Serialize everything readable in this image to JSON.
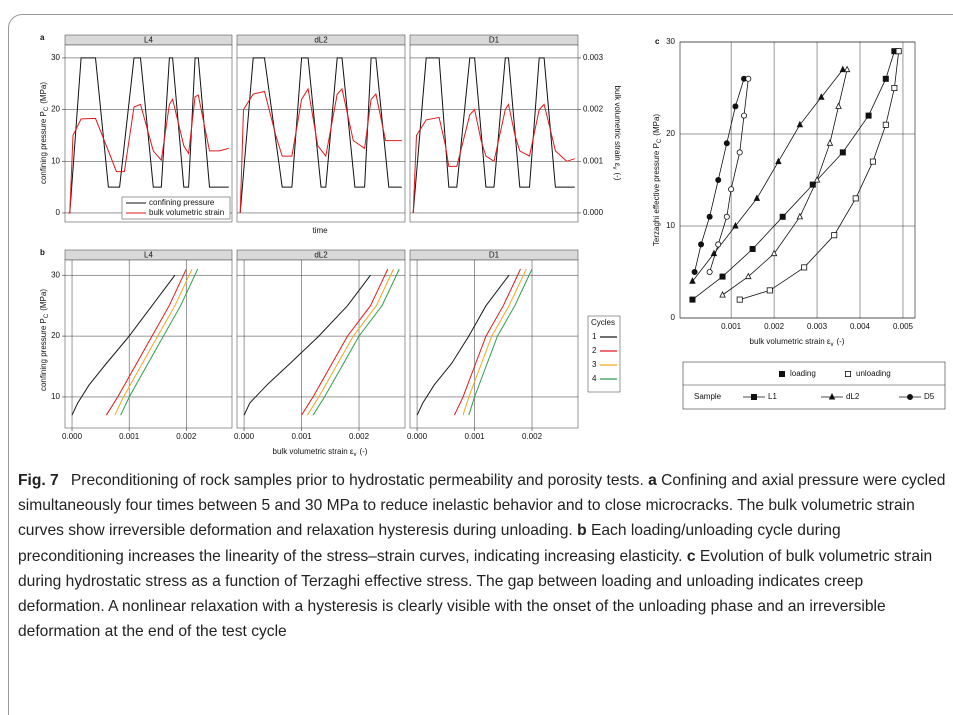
{
  "figure": {
    "panel_a": {
      "label": "a",
      "type": "line",
      "grid": true,
      "xlabel": "time",
      "ylabel": {
        "text": "confining pressure P",
        "sub": "C",
        "unit": "(MPa)"
      },
      "y2label": {
        "text": "bulk volumetric strain ε",
        "sub": "v",
        "unit": "(-)"
      },
      "xlim": [
        -2,
        102
      ],
      "ylim": [
        -1.75,
        32.5
      ],
      "yticks": [
        0,
        10,
        20,
        30
      ],
      "y2lim": [
        -0.000175,
        0.00325
      ],
      "y2ticks": [
        {
          "value": 0,
          "label": "0.000"
        },
        {
          "value": 0.001,
          "label": "0.001"
        },
        {
          "value": 0.002,
          "label": "0.002"
        },
        {
          "value": 0.003,
          "label": "0.003"
        }
      ],
      "legend": [
        {
          "name": "confining pressure",
          "color": "#111111"
        },
        {
          "name": "bulk volumetric strain",
          "color": "#e3191c",
          "axis": "y2"
        }
      ],
      "facets": [
        {
          "title": "L4",
          "series": [
            {
              "x": [
                0,
                1,
                8,
                17,
                25,
                32,
                41,
                45,
                53,
                58,
                63,
                65,
                72,
                75,
                79,
                81,
                88,
                100
              ],
              "values": [
                0,
                0,
                30,
                30,
                5,
                5,
                30,
                30,
                5,
                5,
                30,
                30,
                5,
                5,
                30,
                30,
                5,
                5
              ]
            },
            {
              "x": [
                0,
                1,
                3,
                8,
                17,
                25,
                30,
                35,
                41,
                45,
                53,
                58,
                63,
                65,
                72,
                75,
                79,
                81,
                88,
                94,
                100
              ],
              "values": [
                0,
                0,
                0.0015,
                0.00182,
                0.00183,
                0.0012,
                0.0008,
                0.0008,
                0.00205,
                0.0021,
                0.0012,
                0.00102,
                0.0021,
                0.0022,
                0.0013,
                0.00115,
                0.00225,
                0.00228,
                0.0012,
                0.0012,
                0.00125
              ]
            }
          ]
        },
        {
          "title": "dL2",
          "series": [
            {
              "x": [
                0,
                8,
                15,
                26,
                32,
                38,
                42,
                50,
                53,
                60,
                63,
                71,
                77,
                81,
                84,
                92,
                100
              ],
              "values": [
                0,
                30,
                30,
                5,
                5,
                30,
                30,
                5,
                5,
                30,
                30,
                5,
                5,
                30,
                30,
                5,
                5
              ]
            },
            {
              "x": [
                0,
                2,
                8,
                15,
                22,
                26,
                32,
                38,
                42,
                48,
                53,
                60,
                63,
                70,
                77,
                81,
                84,
                90,
                95,
                100
              ],
              "values": [
                0,
                0.002,
                0.0023,
                0.00235,
                0.0015,
                0.0011,
                0.0011,
                0.0022,
                0.0024,
                0.0013,
                0.0011,
                0.0023,
                0.0024,
                0.0014,
                0.00125,
                0.0022,
                0.0023,
                0.0014,
                0.0014,
                0.0014
              ]
            }
          ]
        },
        {
          "title": "D1",
          "series": [
            {
              "x": [
                0,
                8,
                16,
                22,
                27,
                35,
                38,
                45,
                50,
                57,
                59,
                66,
                72,
                78,
                81,
                88,
                100
              ],
              "values": [
                0,
                30,
                30,
                5,
                5,
                30,
                30,
                5,
                5,
                30,
                30,
                5,
                5,
                30,
                30,
                5,
                5
              ]
            },
            {
              "x": [
                0,
                2,
                8,
                16,
                20,
                22,
                27,
                35,
                38,
                42,
                45,
                50,
                57,
                59,
                63,
                66,
                72,
                78,
                81,
                85,
                88,
                95,
                100
              ],
              "values": [
                0,
                0.0015,
                0.0018,
                0.00185,
                0.0013,
                0.0009,
                0.0009,
                0.0019,
                0.002,
                0.0014,
                0.0011,
                0.001,
                0.002,
                0.0021,
                0.0015,
                0.0012,
                0.0011,
                0.002,
                0.0021,
                0.0016,
                0.0012,
                0.001,
                0.00105
              ]
            }
          ]
        }
      ]
    },
    "panel_b": {
      "label": "b",
      "type": "line",
      "grid": true,
      "xlabel": {
        "text": "bulk volumetric strain ε",
        "sub": "v",
        "unit": "(-)"
      },
      "ylabel": {
        "text": "confining pressure P",
        "sub": "C",
        "unit": "(MPa)"
      },
      "xlim": [
        -0.000123,
        0.0028
      ],
      "xticks": [
        {
          "value": 0,
          "label": "0.000"
        },
        {
          "value": 0.001,
          "label": "0.001"
        },
        {
          "value": 0.002,
          "label": "0.002"
        }
      ],
      "ylim": [
        4.9,
        32.5
      ],
      "yticks": [
        10,
        20,
        30
      ],
      "legend": {
        "title": "Cycles",
        "items": [
          {
            "name": "1",
            "color": "#1a1a1a"
          },
          {
            "name": "2",
            "color": "#e3191c"
          },
          {
            "name": "3",
            "color": "#f5a623"
          },
          {
            "name": "4",
            "color": "#2e9e4f"
          }
        ]
      },
      "facets": [
        {
          "title": "L4",
          "series": [
            {
              "x": [
                0,
                0.0001,
                0.0003,
                0.0006,
                0.001,
                0.0014,
                0.0018
              ],
              "values": [
                7,
                9,
                12,
                15.5,
                20,
                25,
                30
              ]
            },
            {
              "x": [
                0.0006,
                0.0008,
                0.0011,
                0.0014,
                0.0017,
                0.002
              ],
              "values": [
                7,
                10,
                15,
                20,
                25,
                31
              ]
            },
            {
              "x": [
                0.00075,
                0.0009,
                0.0012,
                0.0015,
                0.0018,
                0.0021
              ],
              "values": [
                7,
                10,
                15,
                20,
                25,
                31
              ]
            },
            {
              "x": [
                0.00085,
                0.001,
                0.0013,
                0.0016,
                0.0019,
                0.0022
              ],
              "values": [
                7,
                10,
                15,
                20,
                25,
                31
              ]
            }
          ]
        },
        {
          "title": "dL2",
          "series": [
            {
              "x": [
                0,
                0.0001,
                0.0004,
                0.0008,
                0.0013,
                0.0018,
                0.0022
              ],
              "values": [
                7,
                9,
                12,
                15.5,
                20,
                25,
                30
              ]
            },
            {
              "x": [
                0.001,
                0.0012,
                0.0015,
                0.0018,
                0.0022,
                0.0025
              ],
              "values": [
                7,
                10,
                15,
                20,
                25,
                31
              ]
            },
            {
              "x": [
                0.0011,
                0.0013,
                0.0016,
                0.0019,
                0.0023,
                0.0026
              ],
              "values": [
                7,
                10,
                15,
                20,
                25,
                31
              ]
            },
            {
              "x": [
                0.0012,
                0.0014,
                0.0017,
                0.002,
                0.0024,
                0.0027
              ],
              "values": [
                7,
                10,
                15,
                20,
                25,
                31
              ]
            }
          ]
        },
        {
          "title": "D1",
          "series": [
            {
              "x": [
                0,
                0.0001,
                0.0003,
                0.0006,
                0.0009,
                0.0012,
                0.0016
              ],
              "values": [
                7,
                9,
                12,
                15.5,
                20,
                25,
                30
              ]
            },
            {
              "x": [
                0.00065,
                0.0008,
                0.001,
                0.0012,
                0.0015,
                0.0018
              ],
              "values": [
                7,
                10,
                15,
                20,
                25,
                31
              ]
            },
            {
              "x": [
                0.0008,
                0.0009,
                0.0011,
                0.0013,
                0.0016,
                0.0019
              ],
              "values": [
                7,
                10,
                15,
                20,
                25,
                31
              ]
            },
            {
              "x": [
                0.0009,
                0.001,
                0.0012,
                0.0014,
                0.0017,
                0.002
              ],
              "values": [
                7,
                10,
                15,
                20,
                25,
                31
              ]
            }
          ]
        }
      ]
    },
    "panel_c": {
      "label": "c",
      "type": "scatter",
      "grid": true,
      "color": "#111111",
      "xlabel": {
        "text": "bulk volumetric strain ε",
        "sub": "v",
        "unit": "(-)"
      },
      "ylabel": {
        "text": "Terzaghi effective pressure P",
        "sub": "C",
        "unit": "(MPa)"
      },
      "xlim": [
        -0.00019,
        0.00528
      ],
      "xticks": [
        {
          "value": 0.001,
          "label": "0.001"
        },
        {
          "value": 0.002,
          "label": "0.002"
        },
        {
          "value": 0.003,
          "label": "0.003"
        },
        {
          "value": 0.004,
          "label": "0.004"
        },
        {
          "value": 0.005,
          "label": "0.005"
        }
      ],
      "ylim": [
        0,
        30
      ],
      "yticks": [
        0,
        10,
        20,
        30
      ],
      "legend": {
        "loading": "loading",
        "unloading": "unloading",
        "title": "Sample"
      },
      "samples": [
        {
          "name": "L1",
          "marker": "square",
          "loading": {
            "x": [
              0.0001,
              0.0008,
              0.0015,
              0.0022,
              0.0029,
              0.0036,
              0.0042,
              0.0046,
              0.0048
            ],
            "values": [
              2,
              4.5,
              7.5,
              11,
              14.5,
              18,
              22,
              26,
              29
            ]
          },
          "unloading": {
            "x": [
              0.0049,
              0.0048,
              0.0046,
              0.0043,
              0.0039,
              0.0034,
              0.0027,
              0.0019,
              0.0012
            ],
            "values": [
              29,
              25,
              21,
              17,
              13,
              9,
              5.5,
              3,
              2
            ]
          }
        },
        {
          "name": "dL2",
          "marker": "triangle",
          "loading": {
            "x": [
              0.0001,
              0.0006,
              0.0011,
              0.0016,
              0.0021,
              0.0026,
              0.0031,
              0.0036
            ],
            "values": [
              4,
              7,
              10,
              13,
              17,
              21,
              24,
              27
            ]
          },
          "unloading": {
            "x": [
              0.0037,
              0.0035,
              0.0033,
              0.003,
              0.0026,
              0.002,
              0.0014,
              0.0008
            ],
            "values": [
              27,
              23,
              19,
              15,
              11,
              7,
              4.5,
              2.5
            ]
          }
        },
        {
          "name": "D5",
          "marker": "circle",
          "loading": {
            "x": [
              0.00015,
              0.0003,
              0.0005,
              0.0007,
              0.0009,
              0.0011,
              0.0013
            ],
            "values": [
              5,
              8,
              11,
              15,
              19,
              23,
              26
            ]
          },
          "unloading": {
            "x": [
              0.0014,
              0.0013,
              0.0012,
              0.001,
              0.0009,
              0.0007,
              0.0005
            ],
            "values": [
              26,
              22,
              18,
              14,
              11,
              8,
              5
            ]
          }
        }
      ]
    },
    "caption": [
      {
        "text": "Fig. 7",
        "bold": true
      },
      {
        "text": "Preconditioning of rock samples prior to hydrostatic permeability and porosity tests.",
        "bold": false
      },
      {
        "text": "a",
        "bold": true
      },
      {
        "text": "Confining and axial pressure were cycled simultaneously four times between 5 and 30 MPa to reduce inelastic behavior and to close microcracks. The bulk volumetric strain curves show irreversible deformation and relaxation hysteresis during unloading.",
        "bold": false
      },
      {
        "text": "b",
        "bold": true
      },
      {
        "text": "Each loading/unloading cycle during preconditioning increases the linearity of the stress–strain curves, indicating increasing elasticity.",
        "bold": false
      },
      {
        "text": "c",
        "bold": true
      },
      {
        "text": "Evolution of bulk volumetric strain during hydrostatic stress as a function of Terzaghi effective stress. The gap between loading and unloading indicates creep deformation. A nonlinear relaxation with a hysteresis is clearly visible with the onset of the unloading phase and an irreversible deformation at the end of the test cycle",
        "bold": false
      }
    ]
  }
}
